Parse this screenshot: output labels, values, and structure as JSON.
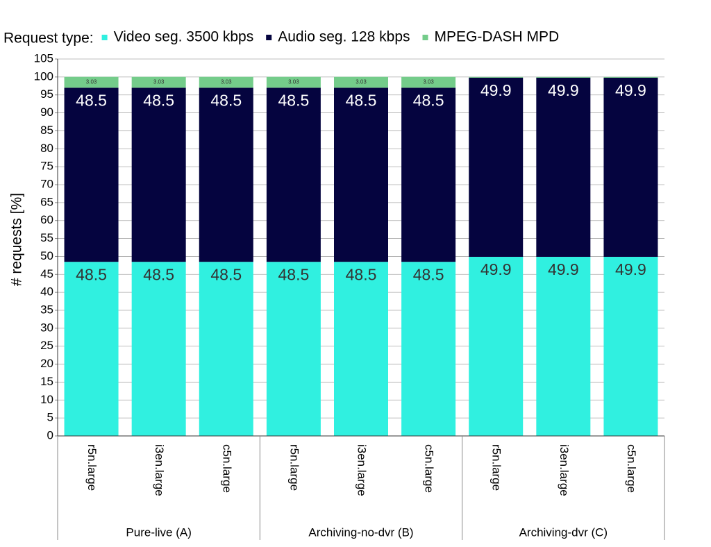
{
  "chart_data": {
    "type": "stacked_bar",
    "legend_title": "Request type:",
    "ylabel": "# requests [%]",
    "categories": [
      "r5n.large",
      "i3en.large",
      "c5n.large",
      "r5n.large",
      "i3en.large",
      "c5n.large",
      "r5n.large",
      "i3en.large",
      "c5n.large"
    ],
    "groups": [
      "Pure-live (A)",
      "Archiving-no-dvr (B)",
      "Archiving-dvr (C)"
    ],
    "series": [
      {
        "name": "Video seg. 3500 kbps",
        "color": "#30f0e0",
        "label_color": "#333333",
        "values": [
          48.5,
          48.5,
          48.5,
          48.5,
          48.5,
          48.5,
          49.9,
          49.9,
          49.9
        ]
      },
      {
        "name": "Audio seg. 128 kbps",
        "color": "#05043f",
        "label_color": "#ffffff",
        "values": [
          48.5,
          48.5,
          48.5,
          48.5,
          48.5,
          48.5,
          49.9,
          49.9,
          49.9
        ]
      },
      {
        "name": "MPEG-DASH MPD",
        "color": "#74cc8a",
        "label_color": "#333333",
        "values": [
          3.03,
          3.03,
          3.03,
          3.03,
          3.03,
          3.03,
          0.2,
          0.2,
          0.2
        ]
      }
    ],
    "ylim": [
      0,
      105
    ],
    "yticks": [
      0,
      5,
      10,
      15,
      20,
      25,
      30,
      35,
      40,
      45,
      50,
      55,
      60,
      65,
      70,
      75,
      80,
      85,
      90,
      95,
      100,
      105
    ],
    "grid": true
  }
}
